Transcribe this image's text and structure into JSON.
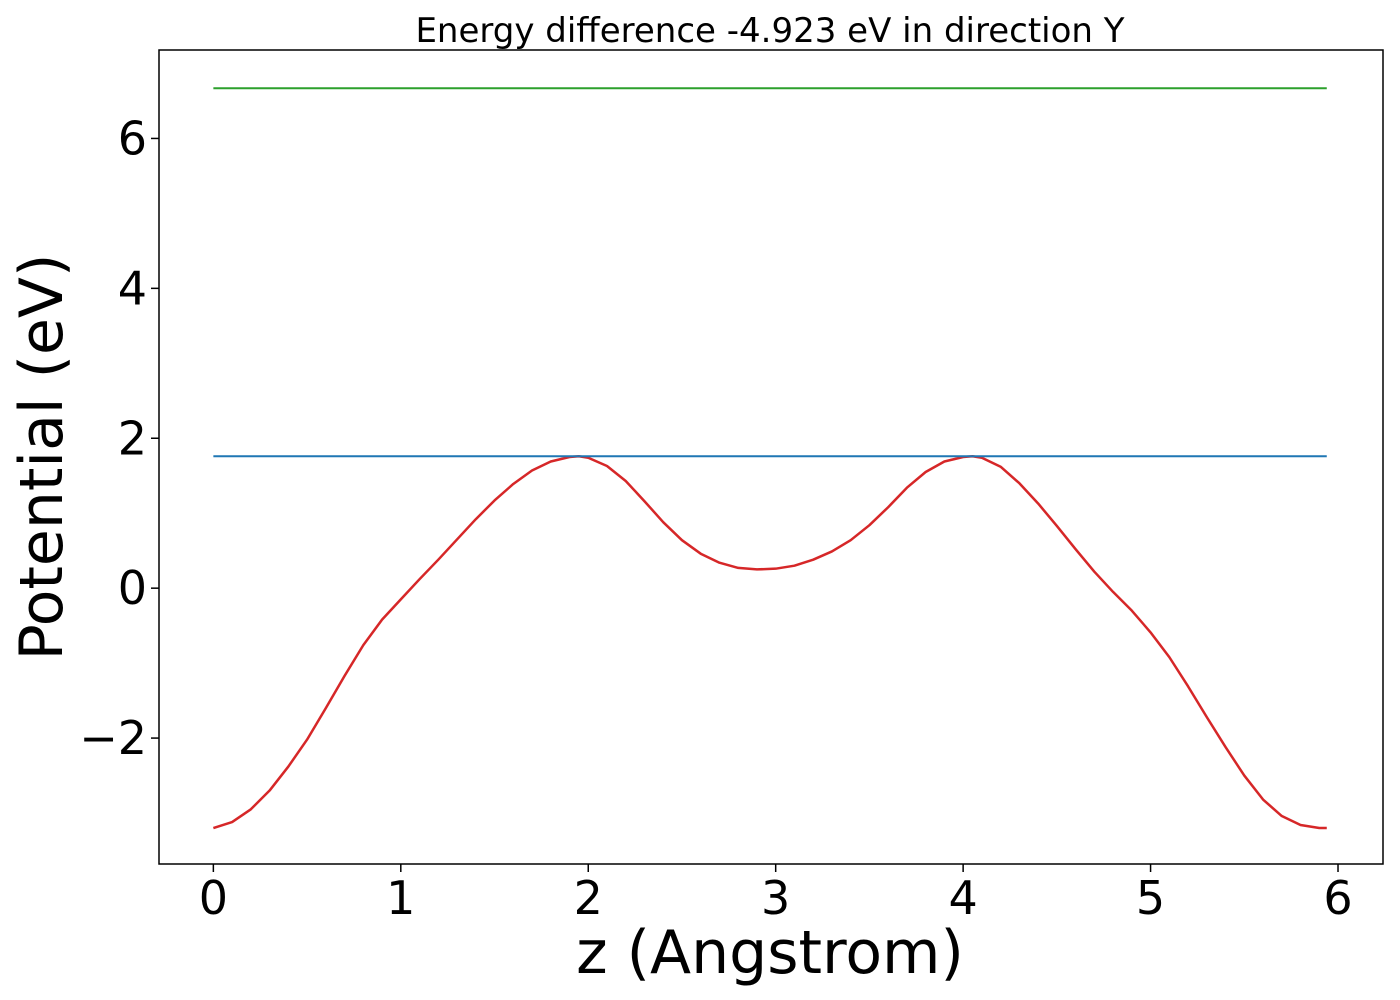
{
  "chart_data": {
    "type": "line",
    "title": "Energy difference -4.923 eV in direction Y",
    "xlabel": "z (Angstrom)",
    "ylabel": "Potential (eV)",
    "xlim": [
      -0.29,
      6.24
    ],
    "ylim": [
      -3.68,
      7.18
    ],
    "xticks": [
      0,
      1,
      2,
      3,
      4,
      5,
      6
    ],
    "xtick_labels": [
      "0",
      "1",
      "2",
      "3",
      "4",
      "5",
      "6"
    ],
    "yticks": [
      -2,
      0,
      2,
      4,
      6
    ],
    "ytick_labels": [
      "−2",
      "0",
      "2",
      "4",
      "6"
    ],
    "grid": false,
    "series": [
      {
        "color": "#d62728",
        "x": [
          0,
          0.1,
          0.2,
          0.3,
          0.4,
          0.5,
          0.6,
          0.7,
          0.8,
          0.9,
          1.0,
          1.1,
          1.2,
          1.3,
          1.4,
          1.5,
          1.6,
          1.7,
          1.8,
          1.9,
          1.95,
          2.0,
          2.1,
          2.2,
          2.3,
          2.4,
          2.5,
          2.6,
          2.7,
          2.8,
          2.9,
          3.0,
          3.1,
          3.2,
          3.3,
          3.4,
          3.5,
          3.6,
          3.7,
          3.8,
          3.9,
          4.0,
          4.05,
          4.1,
          4.2,
          4.3,
          4.4,
          4.5,
          4.6,
          4.7,
          4.8,
          4.9,
          5.0,
          5.1,
          5.2,
          5.3,
          5.4,
          5.5,
          5.6,
          5.7,
          5.8,
          5.9,
          5.94
        ],
        "y": [
          -3.2,
          -3.12,
          -2.95,
          -2.7,
          -2.38,
          -2.02,
          -1.6,
          -1.17,
          -0.76,
          -0.42,
          -0.15,
          0.12,
          0.38,
          0.65,
          0.92,
          1.17,
          1.39,
          1.57,
          1.69,
          1.75,
          1.76,
          1.74,
          1.63,
          1.43,
          1.16,
          0.88,
          0.64,
          0.46,
          0.34,
          0.27,
          0.25,
          0.26,
          0.3,
          0.38,
          0.49,
          0.64,
          0.84,
          1.08,
          1.34,
          1.55,
          1.69,
          1.75,
          1.76,
          1.74,
          1.62,
          1.4,
          1.13,
          0.83,
          0.52,
          0.22,
          -0.05,
          -0.3,
          -0.59,
          -0.92,
          -1.31,
          -1.72,
          -2.12,
          -2.5,
          -2.82,
          -3.04,
          -3.16,
          -3.2,
          -3.2
        ]
      },
      {
        "color": "#1f77b4",
        "x": [
          0,
          5.94
        ],
        "y": [
          1.76,
          1.76
        ]
      },
      {
        "color": "#2ca02c",
        "x": [
          0,
          5.94
        ],
        "y": [
          6.67,
          6.67
        ]
      }
    ]
  }
}
